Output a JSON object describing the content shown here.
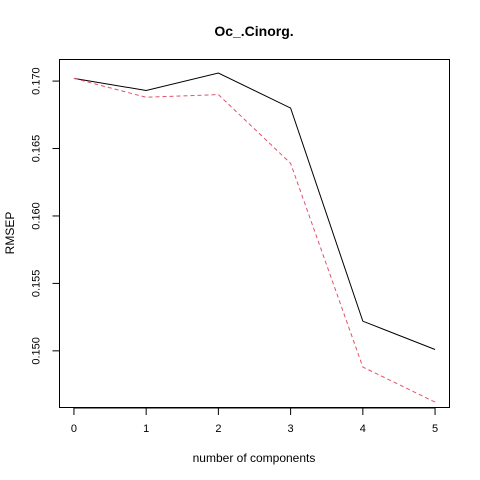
{
  "chart_data": {
    "type": "line",
    "title": "Oc_.Cinorg.",
    "xlabel": "number of components",
    "ylabel": "RMSEP",
    "x": [
      0,
      1,
      2,
      3,
      4,
      5
    ],
    "x_ticks": [
      "0",
      "1",
      "2",
      "3",
      "4",
      "5"
    ],
    "y_ticks": [
      "0.150",
      "0.155",
      "0.160",
      "0.165",
      "0.170"
    ],
    "y_tick_values": [
      0.15,
      0.155,
      0.16,
      0.165,
      0.17
    ],
    "xlim": [
      -0.2,
      5.2
    ],
    "ylim": [
      0.1458,
      0.1716
    ],
    "grid": false,
    "series": [
      {
        "values": [
          0.1702,
          0.1693,
          0.1706,
          0.168,
          0.1522,
          0.1501
        ],
        "color": "#000000",
        "line_style": "solid"
      },
      {
        "values": [
          0.1702,
          0.1688,
          0.169,
          0.1639,
          0.1488,
          0.1462
        ],
        "color": "#DF536B",
        "line_style": "dashed"
      }
    ]
  }
}
